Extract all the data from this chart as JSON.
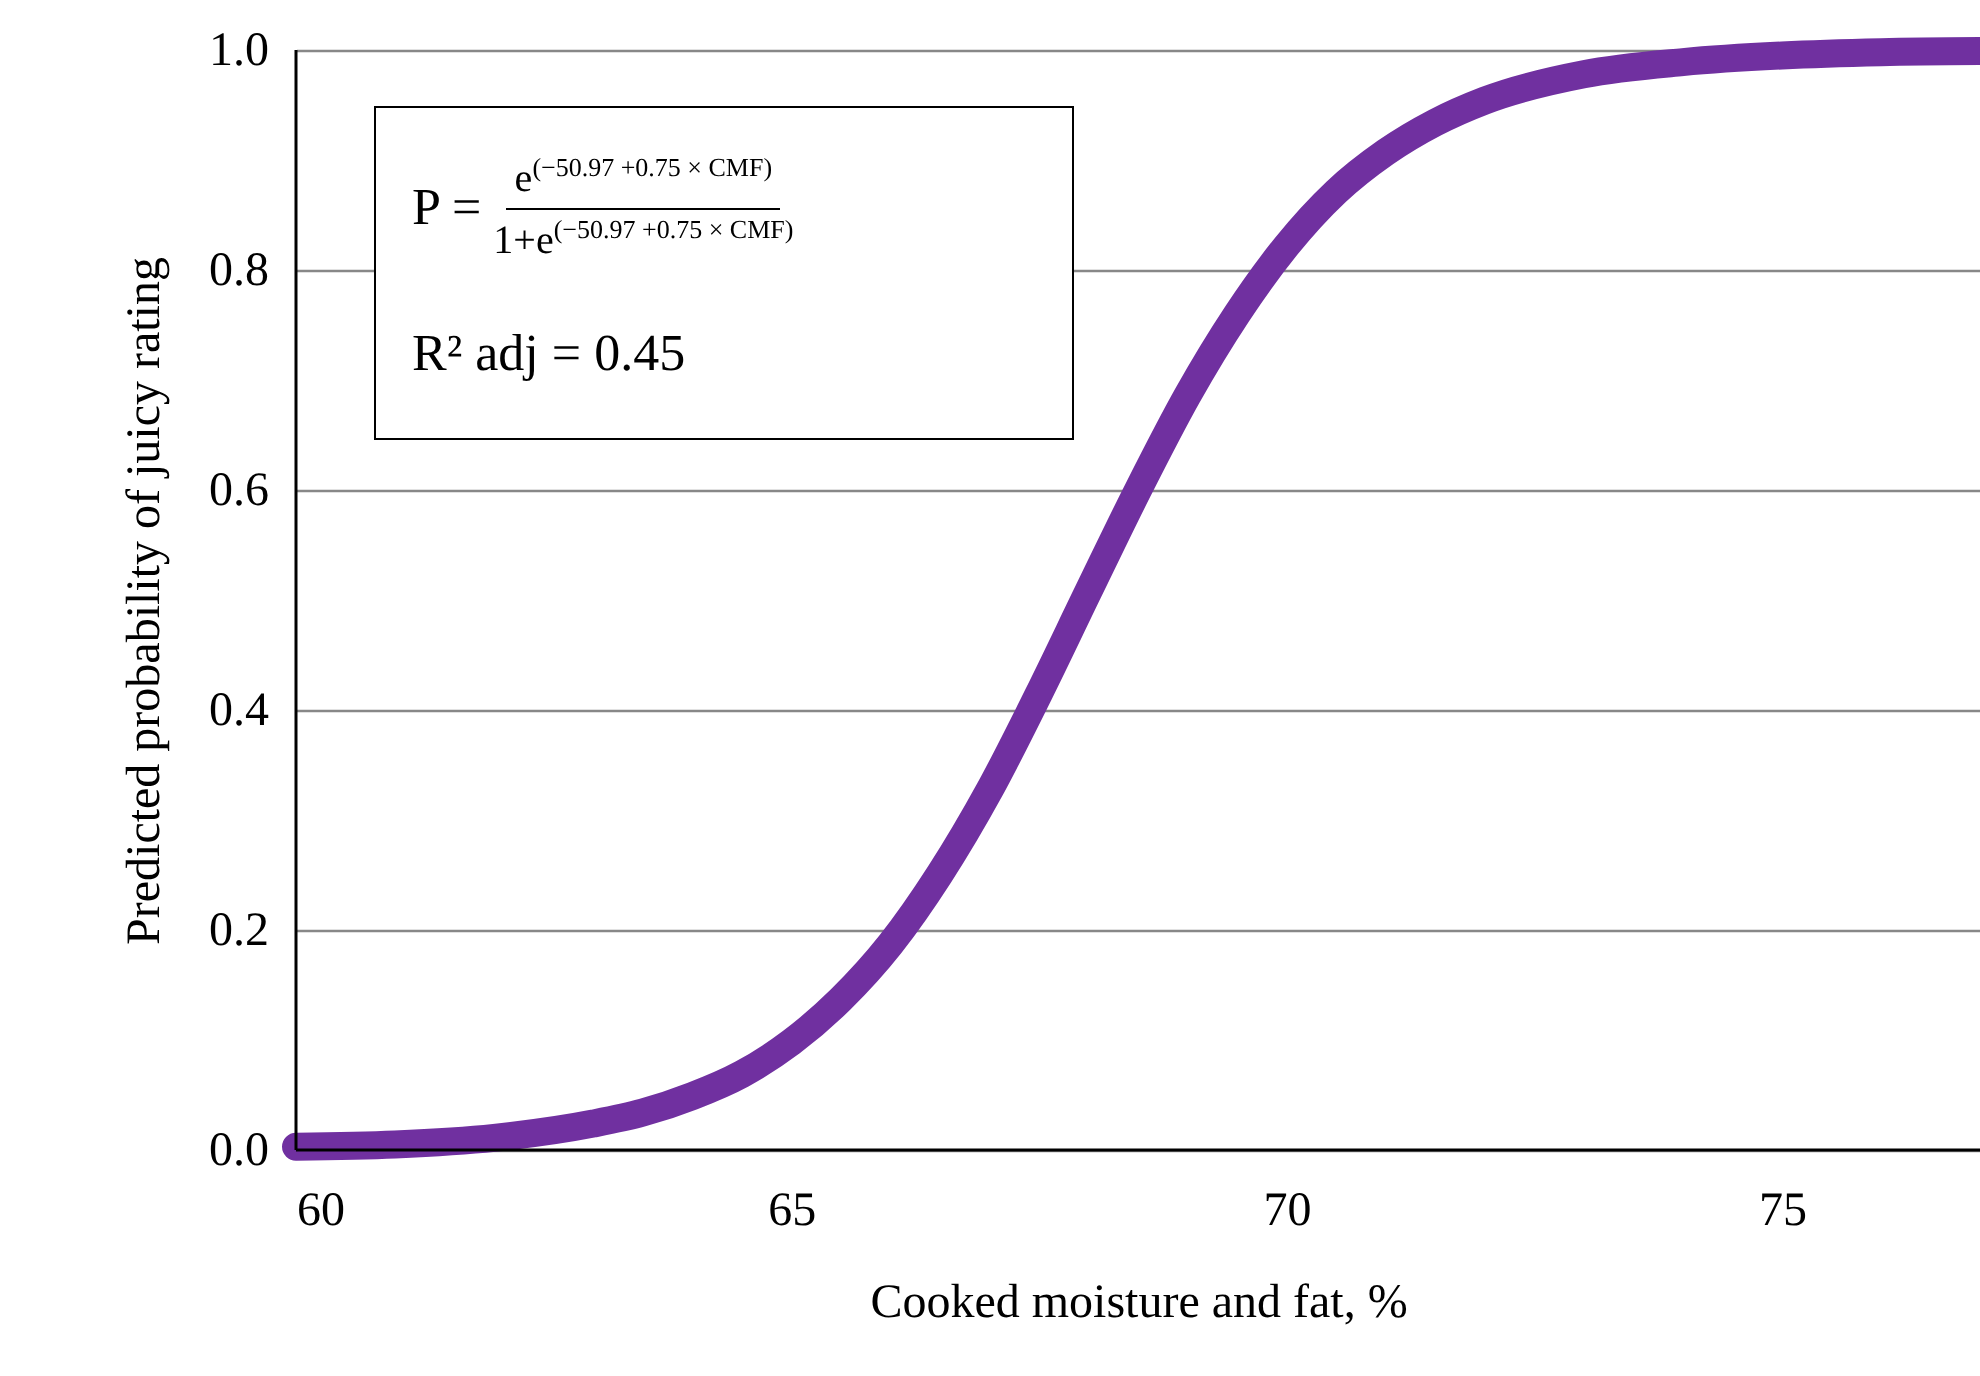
{
  "chart_data": {
    "type": "line",
    "xlabel": "Cooked moisture and fat, %",
    "ylabel": "Predicted probability of juicy rating",
    "annotations": [
      "P = ",
      "e$^{(−50.97 +0.75 × CMF)}$",
      "1+e$^{(−50.97 +0.75 × CMF)}$",
      "R² adj = 0.45"
    ],
    "xlim": [
      60,
      77
    ],
    "xticks": [
      60,
      65,
      70,
      75
    ],
    "ylim": [
      0,
      1
    ],
    "yticks": [
      {
        "value": 0,
        "label": "0.0"
      },
      {
        "value": 0.2,
        "label": "0.2"
      },
      {
        "value": 0.4,
        "label": "0.4"
      },
      {
        "value": 0.6,
        "label": "0.6"
      },
      {
        "value": 0.8,
        "label": "0.8"
      },
      {
        "value": 1,
        "label": "1.0"
      }
    ],
    "grid": "y",
    "line_style": "solid",
    "series": [
      {
        "color": "#7030a0",
        "x": [
          60,
          61,
          62,
          63,
          63.5,
          64,
          64.5,
          65,
          65.5,
          66,
          66.5,
          67,
          67.5,
          68,
          68.5,
          69,
          69.5,
          70,
          70.5,
          71,
          71.5,
          72,
          73,
          74,
          75,
          76,
          77
        ],
        "values": [
          0.003,
          0.005,
          0.011,
          0.024,
          0.034,
          0.049,
          0.069,
          0.098,
          0.137,
          0.187,
          0.251,
          0.327,
          0.415,
          0.508,
          0.6,
          0.686,
          0.76,
          0.822,
          0.871,
          0.907,
          0.934,
          0.954,
          0.978,
          0.989,
          0.995,
          0.998,
          0.999
        ]
      }
    ]
  }
}
